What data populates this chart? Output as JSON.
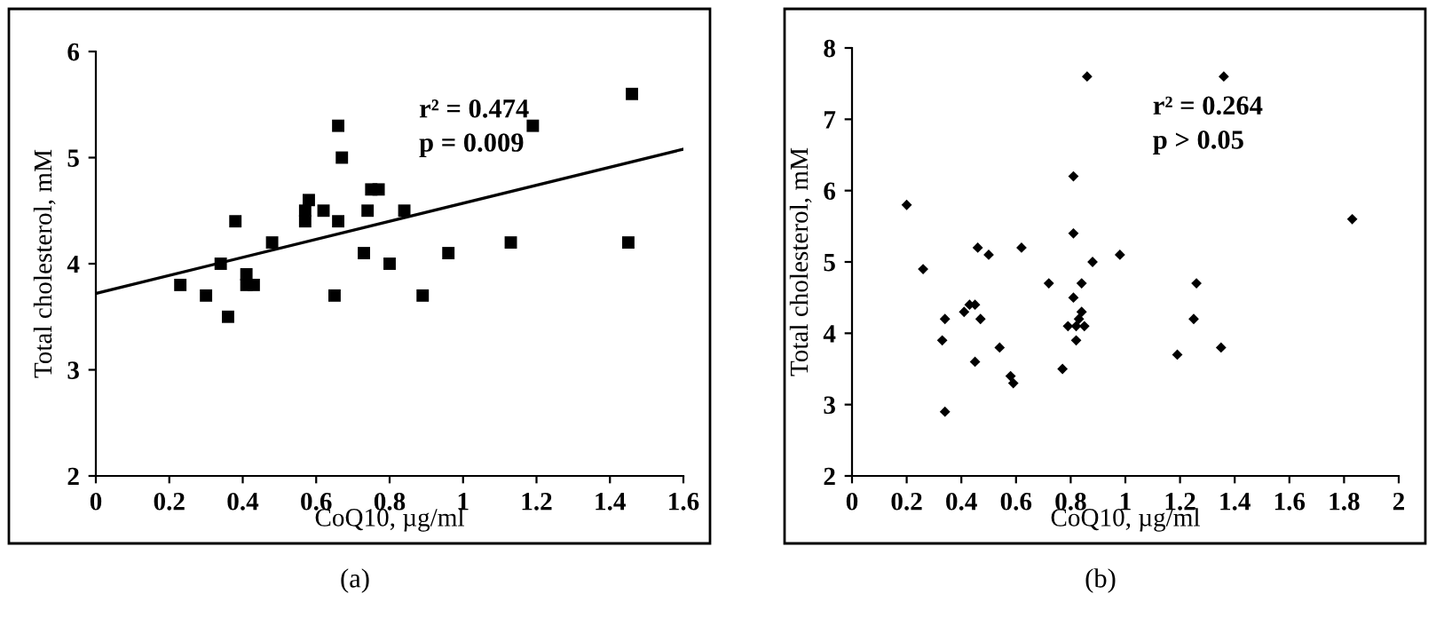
{
  "chart_data": [
    {
      "type": "scatter",
      "xlabel": "CoQ10, µg/ml",
      "ylabel": "Total cholesterol, mM",
      "xlim": [
        0,
        1.6
      ],
      "ylim": [
        2,
        6
      ],
      "xticks": [
        0,
        0.2,
        0.4,
        0.6,
        0.8,
        1,
        1.2,
        1.4,
        1.6
      ],
      "yticks": [
        2,
        3,
        4,
        5,
        6
      ],
      "grid": false,
      "legend": false,
      "annotations": [
        "r² = 0.474",
        "p = 0.009",
        "(a)"
      ],
      "series": [
        {
          "color": "#000000",
          "marker": "square",
          "x": [
            0.23,
            0.3,
            0.34,
            0.36,
            0.38,
            0.41,
            0.41,
            0.43,
            0.48,
            0.57,
            0.57,
            0.58,
            0.62,
            0.65,
            0.66,
            0.66,
            0.67,
            0.73,
            0.74,
            0.75,
            0.77,
            0.8,
            0.84,
            0.89,
            0.96,
            1.13,
            1.19,
            1.45,
            1.46
          ],
          "values": [
            3.8,
            3.7,
            4.0,
            3.5,
            4.4,
            3.9,
            3.8,
            3.8,
            4.2,
            4.5,
            4.4,
            4.6,
            4.5,
            3.7,
            5.3,
            4.4,
            5.0,
            4.1,
            4.5,
            4.7,
            4.7,
            4.0,
            4.5,
            3.7,
            4.1,
            4.2,
            5.3,
            4.2,
            5.6
          ]
        },
        {
          "type": "line",
          "color": "#000000",
          "x": [
            0,
            1.6
          ],
          "values": [
            3.72,
            5.08
          ]
        }
      ]
    },
    {
      "type": "scatter",
      "xlabel": "CoQ10, µg/ml",
      "ylabel": "Total cholesterol, mM",
      "marker": "diamond",
      "xlim": [
        0,
        2
      ],
      "ylim": [
        2,
        8
      ],
      "xticks": [
        0,
        0.2,
        0.4,
        0.6,
        0.8,
        1,
        1.2,
        1.4,
        1.6,
        1.8,
        2
      ],
      "yticks": [
        2,
        3,
        4,
        5,
        6,
        7,
        8
      ],
      "grid": false,
      "legend": false,
      "annotations": [
        "r² = 0.264",
        "p > 0.05",
        "(b)"
      ],
      "series": [
        {
          "color": "#000000",
          "x": [
            0.2,
            0.26,
            0.33,
            0.34,
            0.34,
            0.41,
            0.43,
            0.45,
            0.45,
            0.46,
            0.47,
            0.5,
            0.54,
            0.58,
            0.59,
            0.62,
            0.72,
            0.77,
            0.79,
            0.81,
            0.81,
            0.81,
            0.82,
            0.82,
            0.83,
            0.84,
            0.84,
            0.85,
            0.86,
            0.88,
            0.98,
            1.19,
            1.25,
            1.26,
            1.35,
            1.36,
            1.83
          ],
          "values": [
            5.8,
            4.9,
            3.9,
            4.2,
            2.9,
            4.3,
            4.4,
            4.4,
            3.6,
            5.2,
            4.2,
            5.1,
            3.8,
            3.4,
            3.3,
            5.2,
            4.7,
            3.5,
            4.1,
            6.2,
            5.4,
            4.5,
            4.1,
            3.9,
            4.2,
            4.7,
            4.3,
            4.1,
            7.6,
            5.0,
            5.1,
            3.7,
            4.2,
            4.7,
            3.8,
            7.6,
            5.6
          ]
        }
      ]
    }
  ]
}
